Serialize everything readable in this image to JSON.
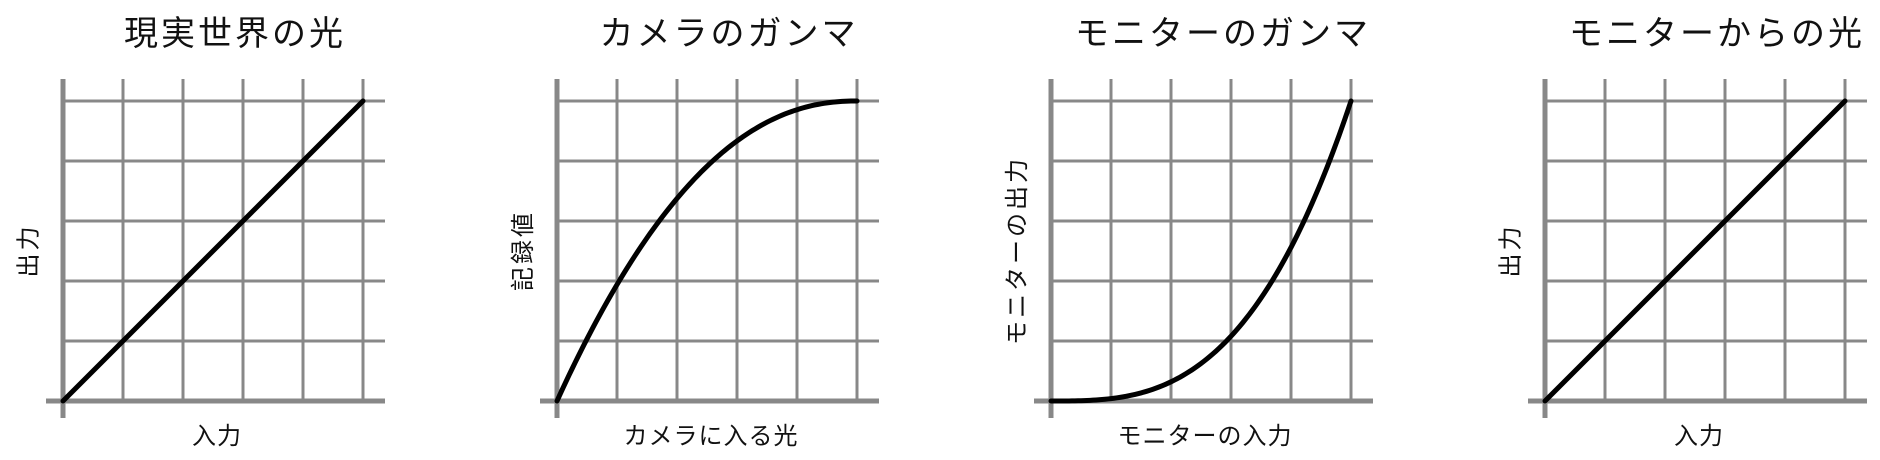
{
  "panels": [
    {
      "title": "現実世界の光",
      "xlabel": "入力",
      "ylabel": "出力",
      "curve": "linear"
    },
    {
      "title": "カメラのガンマ",
      "xlabel": "カメラに入る光",
      "ylabel": "記録値",
      "curve": "camera-gamma"
    },
    {
      "title": "モニターのガンマ",
      "xlabel": "モニターの入力",
      "ylabel": "モニターの出力",
      "curve": "monitor-gamma"
    },
    {
      "title": "モニターからの光",
      "xlabel": "入力",
      "ylabel": "出力",
      "curve": "linear"
    }
  ],
  "colors": {
    "grid": "#888888",
    "axis": "#888888",
    "curve": "#000000",
    "text": "#111111"
  }
}
